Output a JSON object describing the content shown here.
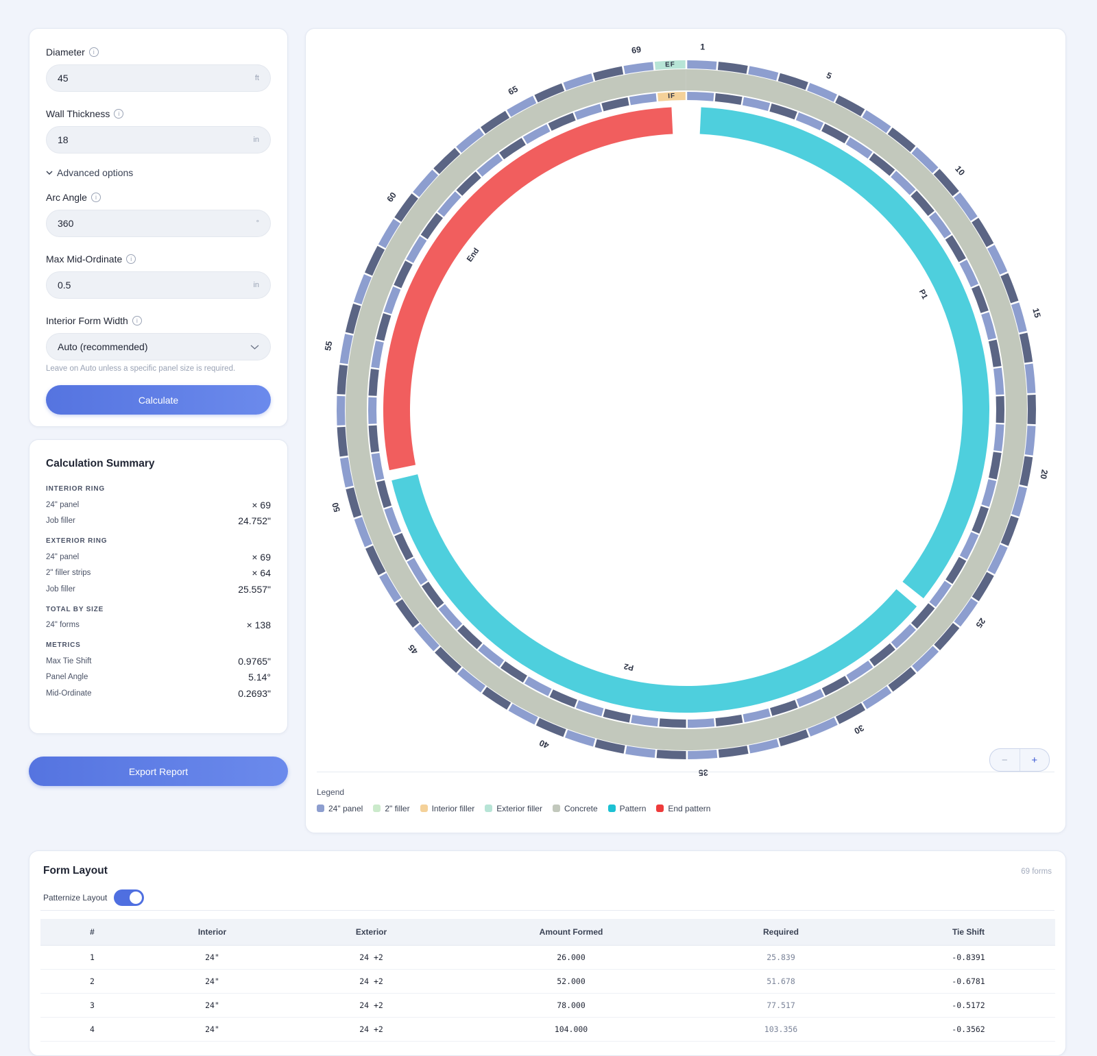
{
  "form": {
    "fields": [
      {
        "label": "Diameter",
        "value": "45",
        "unit": "ft"
      },
      {
        "label": "Wall Thickness",
        "value": "18",
        "unit": "in"
      }
    ],
    "advanced_toggle": "Advanced options",
    "advanced_fields": [
      {
        "label": "Arc Angle",
        "value": "360",
        "unit": "°"
      },
      {
        "label": "Max Mid-Ordinate",
        "value": "0.5",
        "unit": "in"
      }
    ],
    "select": {
      "label": "Interior Form Width",
      "value": "Auto (recommended)",
      "hint": "Leave on Auto unless a specific panel size is required."
    },
    "button": "Calculate"
  },
  "summary": {
    "title": "Calculation Summary",
    "sections": [
      {
        "heading": "INTERIOR RING",
        "rows": [
          [
            "24\" panel",
            "× 69"
          ],
          [
            "Job filler",
            "24.752\""
          ]
        ]
      },
      {
        "heading": "EXTERIOR RING",
        "rows": [
          [
            "24\" panel",
            "× 69"
          ],
          [
            "2\" filler strips",
            "× 64"
          ],
          [
            "Job filler",
            "25.557\""
          ]
        ]
      },
      {
        "heading": "TOTAL BY SIZE",
        "rows": [
          [
            "24\" forms",
            "× 138"
          ]
        ]
      },
      {
        "heading": "METRICS",
        "rows": [
          [
            "Max Tie Shift",
            "0.9765\""
          ],
          [
            "Panel Angle",
            "5.14°"
          ],
          [
            "Mid-Ordinate",
            "0.2693\""
          ]
        ]
      }
    ]
  },
  "export_button": "Export Report",
  "diagram": {
    "ring_labels": [
      1,
      5,
      10,
      15,
      20,
      25,
      30,
      35,
      40,
      45,
      50,
      55,
      60,
      65,
      69
    ],
    "exterior_filler": "EF",
    "interior_filler": "IF",
    "patterns": [
      "P1",
      "P2",
      "End"
    ],
    "zoom": [
      "−",
      "+"
    ],
    "legend_title": "Legend",
    "legend": [
      {
        "name": "24\" panel",
        "color": "#8d9ecf"
      },
      {
        "name": "2\" filler",
        "color": "#cbeacb"
      },
      {
        "name": "Interior filler",
        "color": "#f4d199"
      },
      {
        "name": "Exterior filler",
        "color": "#b7e4d6"
      },
      {
        "name": "Concrete",
        "color": "#c2c8bc"
      },
      {
        "name": "Pattern",
        "color": "#1cc1d3"
      },
      {
        "name": "End pattern",
        "color": "#ee3b3b"
      }
    ]
  },
  "layout": {
    "title": "Form Layout",
    "count": "69 forms",
    "toggle": "Patternize Layout",
    "table": {
      "columns": [
        "#",
        "Interior",
        "Exterior",
        "Amount Formed",
        "Required",
        "Tie Shift"
      ],
      "rows": [
        [
          "1",
          "24\"",
          "24 +2",
          "26.000",
          "25.839",
          "-0.8391"
        ],
        [
          "2",
          "24\"",
          "24 +2",
          "52.000",
          "51.678",
          "-0.6781"
        ],
        [
          "3",
          "24\"",
          "24 +2",
          "78.000",
          "77.517",
          "-0.5172"
        ],
        [
          "4",
          "24\"",
          "24 +2",
          "104.000",
          "103.356",
          "-0.3562"
        ]
      ]
    }
  }
}
